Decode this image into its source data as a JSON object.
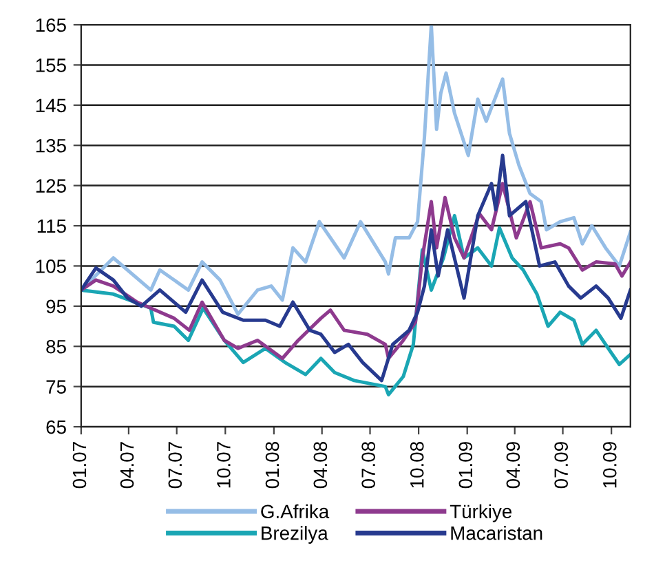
{
  "chart_data": {
    "type": "line",
    "xlim": [
      "2007-01-01",
      "2009-11-06"
    ],
    "xticks": [
      {
        "value": "2007-01-01",
        "label": "01.07"
      },
      {
        "value": "2007-04-01",
        "label": "04.07"
      },
      {
        "value": "2007-07-01",
        "label": "07.07"
      },
      {
        "value": "2007-10-01",
        "label": "10.07"
      },
      {
        "value": "2008-01-01",
        "label": "01.08"
      },
      {
        "value": "2008-04-01",
        "label": "04.08"
      },
      {
        "value": "2008-07-01",
        "label": "07.08"
      },
      {
        "value": "2008-10-01",
        "label": "10.08"
      },
      {
        "value": "2009-01-01",
        "label": "01.09"
      },
      {
        "value": "2009-04-01",
        "label": "04.09"
      },
      {
        "value": "2009-07-01",
        "label": "07.09"
      },
      {
        "value": "2009-10-01",
        "label": "10.09"
      }
    ],
    "ylim": [
      65,
      165
    ],
    "yticks": [
      65,
      75,
      85,
      95,
      105,
      115,
      125,
      135,
      145,
      155,
      165
    ],
    "grid": "y",
    "legend": "bottom",
    "marker": "none",
    "line_style": "solid",
    "series": [
      {
        "name": "G.Afrika",
        "color": "#95bde6",
        "x": [
          "2007-01-01",
          "2007-03-03",
          "2007-05-13",
          "2007-05-30",
          "2007-07-23",
          "2007-08-18",
          "2007-09-21",
          "2007-10-25",
          "2007-12-01",
          "2007-12-27",
          "2008-01-17",
          "2008-02-06",
          "2008-03-01",
          "2008-03-27",
          "2008-04-17",
          "2008-05-13",
          "2008-06-13",
          "2008-07-30",
          "2008-08-05",
          "2008-08-18",
          "2008-09-13",
          "2008-09-29",
          "2008-10-12",
          "2008-10-25",
          "2008-11-04",
          "2008-11-12",
          "2008-11-22",
          "2008-12-08",
          "2009-01-03",
          "2009-01-21",
          "2009-02-06",
          "2009-03-09",
          "2009-03-22",
          "2009-04-09",
          "2009-04-30",
          "2009-05-21",
          "2009-05-31",
          "2009-06-26",
          "2009-07-22",
          "2009-08-07",
          "2009-08-25",
          "2009-09-20",
          "2009-10-16",
          "2009-11-06"
        ],
        "values": [
          99,
          107,
          99,
          104,
          99,
          106,
          101.5,
          93,
          99,
          100,
          96.5,
          109.5,
          106,
          116,
          112,
          107,
          116,
          106,
          103,
          112,
          112,
          116,
          137,
          165,
          139,
          148,
          153,
          143,
          132.5,
          146.5,
          141,
          151.5,
          138,
          130,
          123,
          121,
          114,
          116,
          117,
          110.5,
          115,
          109.5,
          105,
          113.5
        ]
      },
      {
        "name": "Brezilya",
        "color": "#1aa6b4",
        "x": [
          "2007-01-01",
          "2007-03-03",
          "2007-05-13",
          "2007-05-18",
          "2007-06-26",
          "2007-07-23",
          "2007-08-20",
          "2007-09-29",
          "2007-11-04",
          "2007-12-16",
          "2008-01-22",
          "2008-03-01",
          "2008-03-30",
          "2008-04-25",
          "2008-06-01",
          "2008-07-30",
          "2008-08-05",
          "2008-09-02",
          "2008-09-21",
          "2008-10-08",
          "2008-10-25",
          "2008-11-17",
          "2008-12-08",
          "2008-12-26",
          "2009-01-21",
          "2009-02-16",
          "2009-03-03",
          "2009-03-27",
          "2009-04-17",
          "2009-05-13",
          "2009-06-03",
          "2009-06-26",
          "2009-07-22",
          "2009-08-07",
          "2009-09-02",
          "2009-09-25",
          "2009-10-16",
          "2009-11-06"
        ],
        "values": [
          99,
          98,
          94.5,
          91,
          90,
          86.5,
          94.5,
          86.5,
          81,
          84.5,
          81,
          78,
          82,
          78.5,
          76.5,
          75,
          73,
          77.5,
          85.5,
          109,
          99,
          107,
          117.5,
          107,
          109.5,
          105,
          114.5,
          107,
          104,
          98,
          90,
          93.5,
          91.5,
          85.5,
          89,
          84.5,
          80.5,
          83
        ]
      },
      {
        "name": "Türkiye",
        "color": "#8e3a8e",
        "x": [
          "2007-01-01",
          "2007-01-29",
          "2007-03-03",
          "2007-04-17",
          "2007-05-13",
          "2007-06-26",
          "2007-07-25",
          "2007-08-18",
          "2007-09-29",
          "2007-10-25",
          "2007-12-01",
          "2008-01-17",
          "2008-02-16",
          "2008-03-30",
          "2008-04-17",
          "2008-05-13",
          "2008-06-26",
          "2008-07-30",
          "2008-08-05",
          "2008-09-02",
          "2008-09-25",
          "2008-10-08",
          "2008-10-25",
          "2008-11-04",
          "2008-11-20",
          "2008-12-08",
          "2008-12-26",
          "2009-01-24",
          "2009-02-16",
          "2009-03-09",
          "2009-04-04",
          "2009-04-30",
          "2009-05-21",
          "2009-06-26",
          "2009-07-12",
          "2009-08-07",
          "2009-09-02",
          "2009-10-08",
          "2009-10-21",
          "2009-11-06"
        ],
        "values": [
          99,
          101.5,
          100,
          96,
          94.5,
          92,
          89,
          96,
          86.5,
          84.5,
          86.5,
          82,
          86.5,
          92,
          94,
          89,
          88,
          85.5,
          82,
          86.5,
          91,
          107,
          121,
          109.5,
          122,
          112,
          107,
          118,
          114,
          125.5,
          112,
          121,
          109.5,
          110.5,
          109.5,
          104,
          106,
          105.5,
          102.5,
          106
        ]
      },
      {
        "name": "Macaristan",
        "color": "#273a8f",
        "x": [
          "2007-01-01",
          "2007-01-29",
          "2007-03-03",
          "2007-03-30",
          "2007-04-25",
          "2007-05-30",
          "2007-07-18",
          "2007-08-18",
          "2007-09-26",
          "2007-11-04",
          "2007-12-16",
          "2008-01-12",
          "2008-02-06",
          "2008-03-09",
          "2008-03-30",
          "2008-04-25",
          "2008-05-21",
          "2008-06-17",
          "2008-07-23",
          "2008-08-13",
          "2008-09-13",
          "2008-09-29",
          "2008-10-12",
          "2008-10-25",
          "2008-11-07",
          "2008-11-25",
          "2008-12-16",
          "2008-12-26",
          "2009-01-21",
          "2009-02-16",
          "2009-02-24",
          "2009-03-09",
          "2009-03-22",
          "2009-04-22",
          "2009-05-18",
          "2009-06-16",
          "2009-07-12",
          "2009-08-04",
          "2009-09-02",
          "2009-09-25",
          "2009-10-19",
          "2009-11-06"
        ],
        "values": [
          99,
          104.5,
          101.5,
          97,
          95,
          99,
          93.5,
          101.5,
          93.5,
          91.5,
          91.5,
          90,
          96,
          89,
          88,
          83.5,
          85.5,
          81,
          76.5,
          85.5,
          89,
          93.5,
          100,
          114,
          102.5,
          114,
          102.5,
          97,
          117.5,
          125.5,
          119,
          132.5,
          117.5,
          121,
          105,
          106,
          100,
          97,
          100,
          97,
          92,
          99
        ]
      }
    ]
  }
}
